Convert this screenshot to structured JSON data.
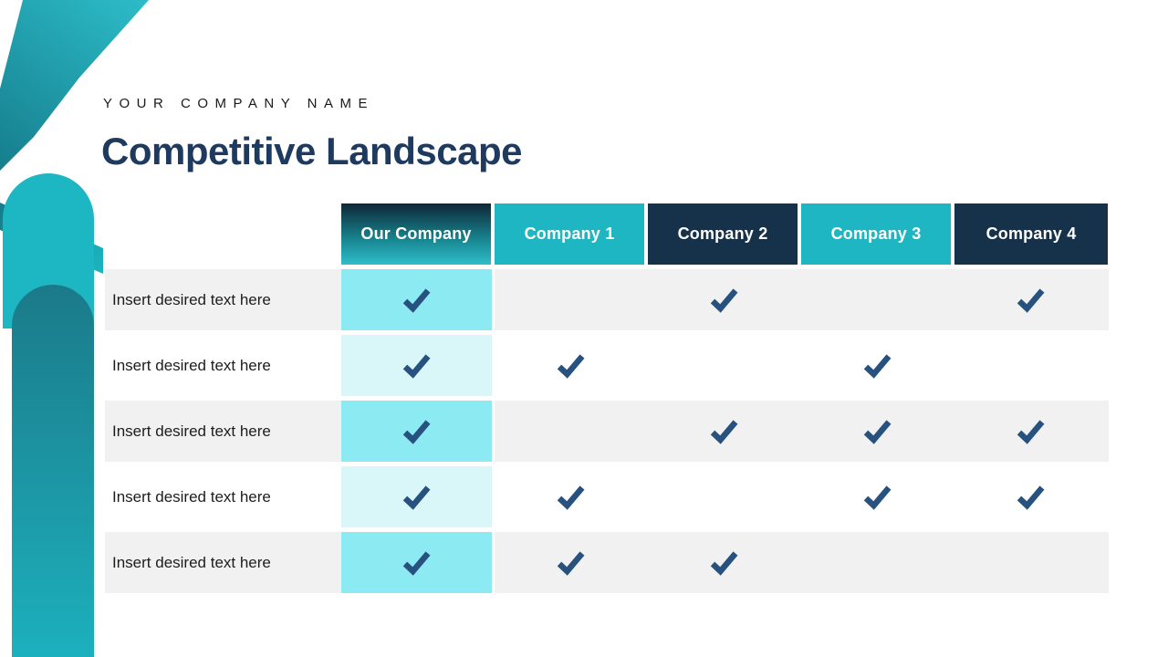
{
  "slide": {
    "kicker": "YOUR COMPANY NAME",
    "title": "Competitive Landscape"
  },
  "colors": {
    "teal": "#1eb6c3",
    "navy": "#16314a",
    "title_navy": "#1f3a5f",
    "kicker_text": "#1a1a1a",
    "label_text": "#1d1d1d",
    "check": "#27517f",
    "row_gray": "#f1f1f1",
    "highlight_strong": "#8ceaf2",
    "highlight_light": "#d9f6f9",
    "header_gradient_top": "#0f2737",
    "header_gradient_bottom": "#2fbeca",
    "stripe_light": "#2cbac7",
    "stripe_dark": "#157c8b",
    "pill_light": "#1db6c3",
    "pill_dark_top": "#1b7a89",
    "pill_dark_bottom": "#1cb0bd"
  },
  "table": {
    "columns": [
      {
        "label": "Our Company",
        "style": "gradient"
      },
      {
        "label": "Company 1",
        "style": "teal"
      },
      {
        "label": "Company 2",
        "style": "navy"
      },
      {
        "label": "Company 3",
        "style": "teal"
      },
      {
        "label": "Company 4",
        "style": "navy"
      }
    ],
    "rows": [
      {
        "label": "Insert desired text here",
        "checks": [
          true,
          false,
          true,
          false,
          true
        ]
      },
      {
        "label": "Insert desired text here",
        "checks": [
          true,
          true,
          false,
          true,
          false
        ]
      },
      {
        "label": "Insert desired text here",
        "checks": [
          true,
          false,
          true,
          true,
          true
        ]
      },
      {
        "label": "Insert desired text here",
        "checks": [
          true,
          true,
          false,
          true,
          true
        ]
      },
      {
        "label": "Insert desired text here",
        "checks": [
          true,
          true,
          true,
          false,
          false
        ]
      }
    ]
  },
  "icons": {
    "check": "check-icon"
  }
}
